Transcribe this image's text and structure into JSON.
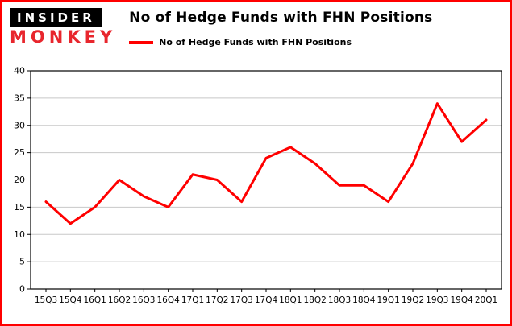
{
  "brand": {
    "line1": "INSIDER",
    "line2": "MONKEY"
  },
  "header": {
    "title": "No of Hedge Funds with FHN Positions"
  },
  "legend": {
    "label": "No of Hedge Funds with FHN Positions",
    "color": "#ff0000"
  },
  "colors": {
    "border": "#ff0000",
    "brand_red": "#e8262d",
    "grid": "#c8c8c8",
    "axis": "#000000",
    "background": "#ffffff",
    "line": "#ff0000"
  },
  "chart_data": {
    "type": "line",
    "title": "No of Hedge Funds with FHN Positions",
    "xlabel": "",
    "ylabel": "",
    "categories": [
      "15Q3",
      "15Q4",
      "16Q1",
      "16Q2",
      "16Q3",
      "16Q4",
      "17Q1",
      "17Q2",
      "17Q3",
      "17Q4",
      "18Q1",
      "18Q2",
      "18Q3",
      "18Q4",
      "19Q1",
      "19Q2",
      "19Q3",
      "19Q4",
      "20Q1"
    ],
    "series": [
      {
        "name": "No of Hedge Funds with FHN Positions",
        "color": "#ff0000",
        "values": [
          16,
          12,
          15,
          20,
          17,
          15,
          21,
          20,
          16,
          24,
          26,
          23,
          19,
          19,
          16,
          23,
          34,
          27,
          31
        ]
      }
    ],
    "ylim": [
      0,
      40
    ],
    "ytick_interval": 5,
    "grid": true,
    "legend_position": "top-left"
  }
}
